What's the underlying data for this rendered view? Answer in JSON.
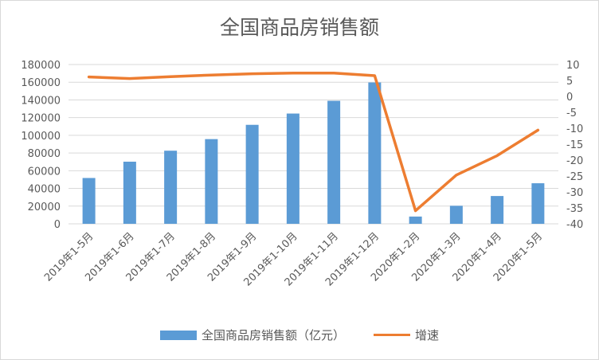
{
  "chart_data": {
    "type": "bar+line",
    "title": "全国商品房销售额",
    "categories": [
      "2019年1-5月",
      "2019年1-6月",
      "2019年1-7月",
      "2019年1-8月",
      "2019年1-9月",
      "2019年1-10月",
      "2019年1-11月",
      "2019年1-12月",
      "2020年1-2月",
      "2020年1-3月",
      "2020年1-4月",
      "2020年1-5月"
    ],
    "series": [
      {
        "name": "全国商品房销售额（亿元）",
        "type": "bar",
        "axis": "left",
        "color": "#5b9bd5",
        "values": [
          51773,
          70194,
          82608,
          95708,
          111850,
          124600,
          139000,
          159725,
          8203,
          20365,
          31406,
          45832
        ]
      },
      {
        "name": "增速",
        "type": "line",
        "axis": "right",
        "color": "#ed7d31",
        "values": [
          6.1,
          5.6,
          6.2,
          6.7,
          7.1,
          7.3,
          7.3,
          6.5,
          -35.9,
          -24.7,
          -18.6,
          -10.6
        ]
      }
    ],
    "y_left": {
      "min": 0,
      "max": 180000,
      "step": 20000
    },
    "y_right": {
      "min": -40,
      "max": 10,
      "step": 5
    },
    "legend_position": "bottom",
    "grid": "horizontal"
  }
}
